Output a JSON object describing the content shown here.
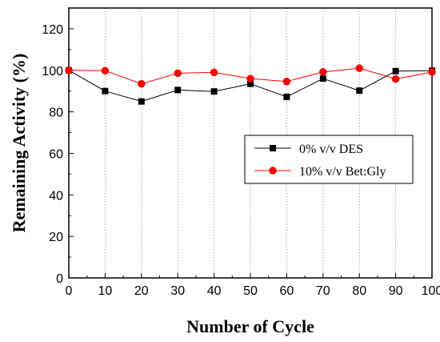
{
  "chart_data": {
    "type": "line",
    "xlabel": "Number of Cycle",
    "ylabel": "Remaining Activity (%)",
    "xlim": [
      0,
      100
    ],
    "ylim": [
      0,
      130
    ],
    "x_ticks": [
      0,
      10,
      20,
      30,
      40,
      50,
      60,
      70,
      80,
      90,
      100
    ],
    "y_ticks": [
      0,
      20,
      40,
      60,
      80,
      100,
      120
    ],
    "x": [
      0,
      10,
      20,
      30,
      40,
      50,
      60,
      70,
      80,
      90,
      100
    ],
    "grid": "vertical dotted",
    "legend_position": "center-right",
    "series": [
      {
        "name": "0% v/v DES",
        "color": "#000000",
        "marker": "square",
        "values": [
          100,
          90,
          85,
          90.5,
          89.8,
          93.5,
          87.2,
          96,
          90.2,
          99.6,
          99.8
        ]
      },
      {
        "name": "10% v/v Bet:Gly",
        "color": "#ff0000",
        "marker": "circle",
        "values": [
          100,
          99.8,
          93.5,
          98.6,
          99,
          96,
          94.6,
          99.2,
          101,
          95.8,
          99.2
        ]
      }
    ]
  }
}
